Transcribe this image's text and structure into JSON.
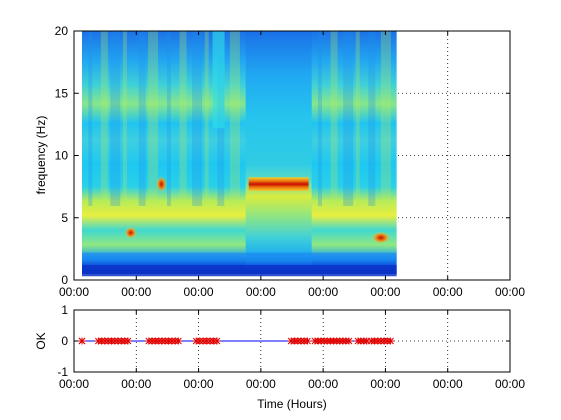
{
  "chart_data": [
    {
      "type": "heatmap",
      "title": "",
      "ylabel": "frequency (Hz)",
      "xlabel": "",
      "ylim": [
        0,
        20
      ],
      "yticks": [
        0,
        5,
        10,
        15,
        20
      ],
      "xtick_labels": [
        "00:00",
        "00:00",
        "00:00",
        "00:00",
        "00:00",
        "00:00",
        "00:00",
        "00:00"
      ],
      "grid": "dotted, right of data",
      "colormap": "jet",
      "colors": {
        "background": "#00c3f0",
        "low_band": "#0030d0",
        "band_yellow": "#e8ee40",
        "band_green": "#70e090",
        "hot": "#d01000",
        "top_dark": "#1060e0"
      },
      "data_extent_fraction": 0.74,
      "features": [
        {
          "name": "narrowband line",
          "freq_hz": 7.7,
          "time_fraction": [
            0.53,
            0.72
          ]
        },
        {
          "name": "spot",
          "freq_hz": 7.7,
          "time_fraction": [
            0.245,
            0.26
          ]
        },
        {
          "name": "spot",
          "freq_hz": 3.8,
          "time_fraction": [
            0.145,
            0.165
          ]
        },
        {
          "name": "spot",
          "freq_hz": 3.4,
          "time_fraction": [
            0.93,
            0.97
          ]
        }
      ]
    },
    {
      "type": "scatter",
      "title": "",
      "ylabel": "OK",
      "xlabel": "Time (Hours)",
      "ylim": [
        -1,
        1
      ],
      "yticks": [
        -1,
        0,
        1
      ],
      "xtick_labels": [
        "00:00",
        "00:00",
        "00:00",
        "00:00",
        "00:00",
        "00:00",
        "00:00",
        "00:00"
      ],
      "colors": {
        "marker": "#e00000",
        "line": "#0000ff"
      },
      "segments": [
        [
          0.0,
          0.0
        ],
        [
          0.055,
          0.155
        ],
        [
          0.225,
          0.325
        ],
        [
          0.385,
          0.455
        ],
        [
          0.705,
          0.76
        ],
        [
          0.785,
          0.9
        ],
        [
          0.93,
          0.96
        ],
        [
          0.975,
          1.04
        ]
      ],
      "y_value": 0
    }
  ]
}
